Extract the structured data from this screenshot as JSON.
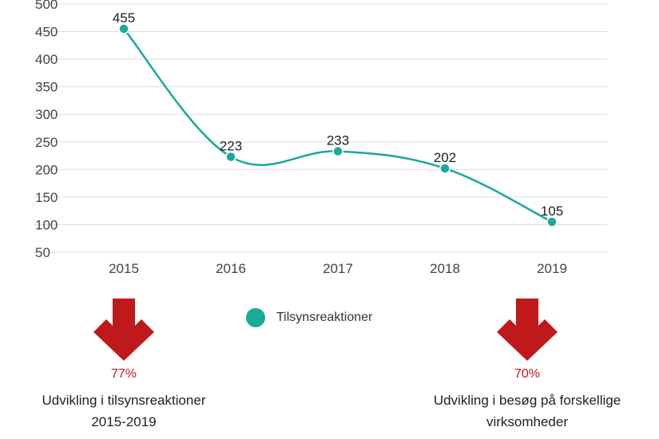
{
  "chart_data": {
    "type": "line",
    "categories": [
      "2015",
      "2016",
      "2017",
      "2018",
      "2019"
    ],
    "series": [
      {
        "name": "Tilsynsreaktioner",
        "values": [
          455,
          223,
          233,
          202,
          105
        ]
      }
    ],
    "y_ticks": [
      50,
      100,
      150,
      200,
      250,
      300,
      350,
      400,
      450,
      500
    ],
    "ylim": [
      50,
      500
    ],
    "grid": true,
    "legend": "bottom-center",
    "colors": {
      "series": "#1aa99a",
      "grid": "#dddddd",
      "callout": "#c0191c"
    }
  },
  "legend": {
    "label": "Tilsynsreaktioner"
  },
  "callouts": [
    {
      "icon": "down-arrow-icon",
      "percent": "77%",
      "caption_lines": [
        "Udvikling i tilsynsreaktioner",
        "2015-2019"
      ]
    },
    {
      "icon": "down-arrow-icon",
      "percent": "70%",
      "caption_lines": [
        "Udvikling i besøg på forskellige",
        "virksomheder"
      ]
    }
  ]
}
